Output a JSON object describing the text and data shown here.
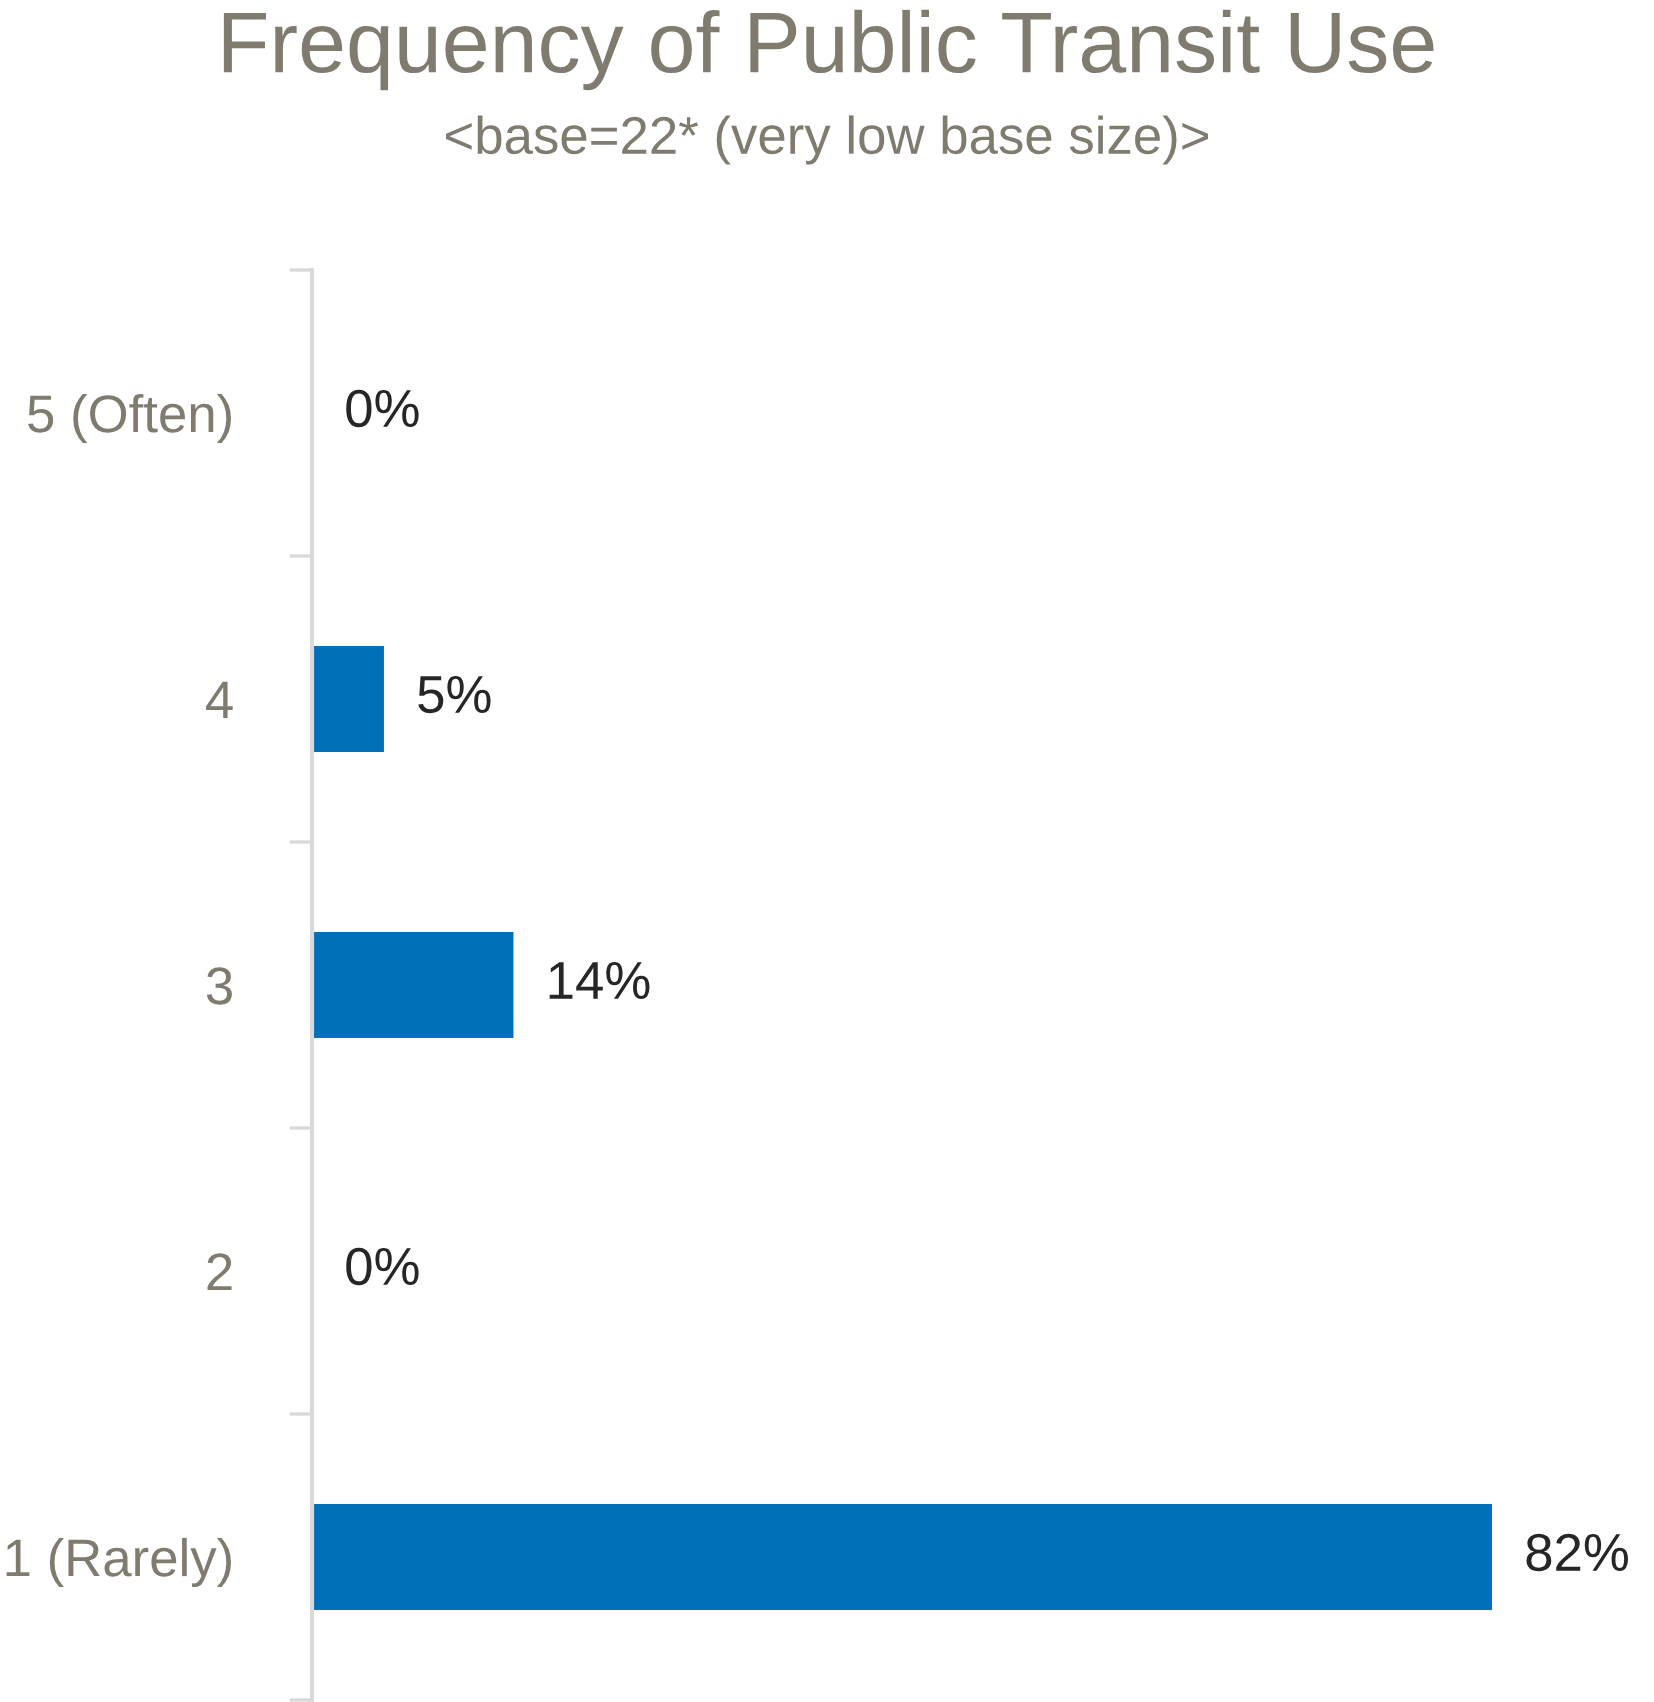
{
  "chart_data": {
    "type": "bar",
    "orientation": "horizontal",
    "title": "Frequency of Public Transit Use",
    "subtitle": "<base=22* (very low base size)>",
    "categories": [
      "5 (Often)",
      "4",
      "3",
      "2",
      "1 (Rarely)"
    ],
    "values": [
      0,
      5,
      14,
      0,
      82
    ],
    "value_labels": [
      "0%",
      "5%",
      "14%",
      "0%",
      "82%"
    ],
    "color": "#0070b8",
    "grid": false,
    "legend": false
  }
}
